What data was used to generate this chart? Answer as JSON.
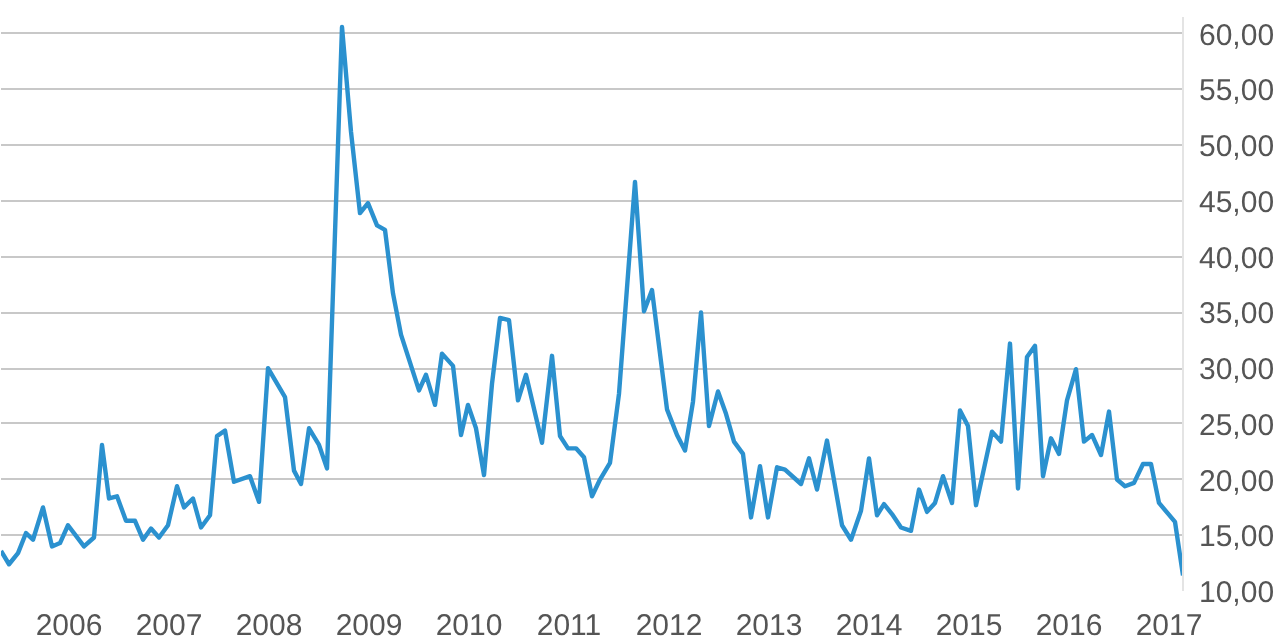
{
  "chart_data": {
    "type": "line",
    "x": [
      2005.32,
      2005.4,
      2005.49,
      2005.57,
      2005.64,
      2005.74,
      2005.83,
      2005.91,
      2005.99,
      2006.15,
      2006.25,
      2006.33,
      2006.4,
      2006.48,
      2006.57,
      2006.66,
      2006.74,
      2006.82,
      2006.9,
      2006.99,
      2007.08,
      2007.15,
      2007.24,
      2007.32,
      2007.41,
      2007.48,
      2007.56,
      2007.65,
      2007.81,
      2007.9,
      2007.99,
      2008.16,
      2008.25,
      2008.32,
      2008.4,
      2008.5,
      2008.58,
      2008.73,
      2008.82,
      2008.91,
      2008.99,
      2009.08,
      2009.16,
      2009.24,
      2009.32,
      2009.5,
      2009.57,
      2009.66,
      2009.73,
      2009.84,
      2009.92,
      2009.99,
      2010.07,
      2010.15,
      2010.23,
      2010.31,
      2010.4,
      2010.49,
      2010.57,
      2010.73,
      2010.83,
      2010.91,
      2010.99,
      2011.07,
      2011.15,
      2011.23,
      2011.31,
      2011.41,
      2011.5,
      2011.66,
      2011.75,
      2011.83,
      2011.98,
      2012.08,
      2012.16,
      2012.24,
      2012.32,
      2012.4,
      2012.49,
      2012.57,
      2012.65,
      2012.74,
      2012.82,
      2012.91,
      2012.99,
      2013.08,
      2013.16,
      2013.32,
      2013.4,
      2013.48,
      2013.58,
      2013.73,
      2013.82,
      2013.92,
      2014.0,
      2014.08,
      2014.15,
      2014.23,
      2014.32,
      2014.42,
      2014.5,
      2014.58,
      2014.66,
      2014.74,
      2014.83,
      2014.91,
      2014.99,
      2015.07,
      2015.23,
      2015.32,
      2015.41,
      2015.49,
      2015.58,
      2015.66,
      2015.74,
      2015.82,
      2015.9,
      2015.98,
      2016.07,
      2016.15,
      2016.23,
      2016.32,
      2016.4,
      2016.48,
      2016.56,
      2016.65,
      2016.74,
      2016.82,
      2016.9,
      2017.06,
      2017.14
    ],
    "series": [
      {
        "color": "#2b91cf",
        "values": [
          13.6,
          12.4,
          13.4,
          15.2,
          14.6,
          17.5,
          14.0,
          14.3,
          15.9,
          14.0,
          14.8,
          23.1,
          18.3,
          18.5,
          16.3,
          16.3,
          14.6,
          15.6,
          14.8,
          15.9,
          19.4,
          17.5,
          18.3,
          15.7,
          16.8,
          23.9,
          24.4,
          19.8,
          20.3,
          18.0,
          30.0,
          27.4,
          20.8,
          19.6,
          24.6,
          23.1,
          21.0,
          60.6,
          51.2,
          43.9,
          44.8,
          42.8,
          42.4,
          36.7,
          33.0,
          28.0,
          29.4,
          26.7,
          31.3,
          30.2,
          24.0,
          26.7,
          24.6,
          20.4,
          28.6,
          34.5,
          34.3,
          27.1,
          29.4,
          23.3,
          31.1,
          23.9,
          22.8,
          22.8,
          22.0,
          18.5,
          20.0,
          21.5,
          27.7,
          46.7,
          35.1,
          37.0,
          26.3,
          24.0,
          22.6,
          27.0,
          35.0,
          24.8,
          27.9,
          25.9,
          23.4,
          22.3,
          16.6,
          21.2,
          16.6,
          21.1,
          20.9,
          19.6,
          21.9,
          19.1,
          23.5,
          15.9,
          14.6,
          17.2,
          21.9,
          16.8,
          17.8,
          16.9,
          15.7,
          15.4,
          19.1,
          17.1,
          17.9,
          20.3,
          17.9,
          26.2,
          24.8,
          17.7,
          24.3,
          23.4,
          32.2,
          19.2,
          31.0,
          32.0,
          20.3,
          23.7,
          22.3,
          27.1,
          29.9,
          23.4,
          24.0,
          22.2,
          26.1,
          20.0,
          19.4,
          19.7,
          21.4,
          21.4,
          17.9,
          16.2,
          11.4
        ]
      }
    ],
    "xlim": [
      2005.32,
      2017.14
    ],
    "xticks": [
      2006,
      2007,
      2008,
      2009,
      2010,
      2011,
      2012,
      2013,
      2014,
      2015,
      2016,
      2017
    ],
    "ylim": [
      10,
      61.5
    ],
    "yticks": [
      {
        "value": 10,
        "label": "10,00"
      },
      {
        "value": 15,
        "label": "15,00"
      },
      {
        "value": 20,
        "label": "20,00"
      },
      {
        "value": 25,
        "label": "25,00"
      },
      {
        "value": 30,
        "label": "30,00"
      },
      {
        "value": 35,
        "label": "35,00"
      },
      {
        "value": 40,
        "label": "40,00"
      },
      {
        "value": 45,
        "label": "45,00"
      },
      {
        "value": 50,
        "label": "50,00"
      },
      {
        "value": 55,
        "label": "55,00"
      },
      {
        "value": 60,
        "label": "60,00"
      }
    ],
    "grid": "y",
    "marker": "none",
    "line_style": "solid"
  }
}
